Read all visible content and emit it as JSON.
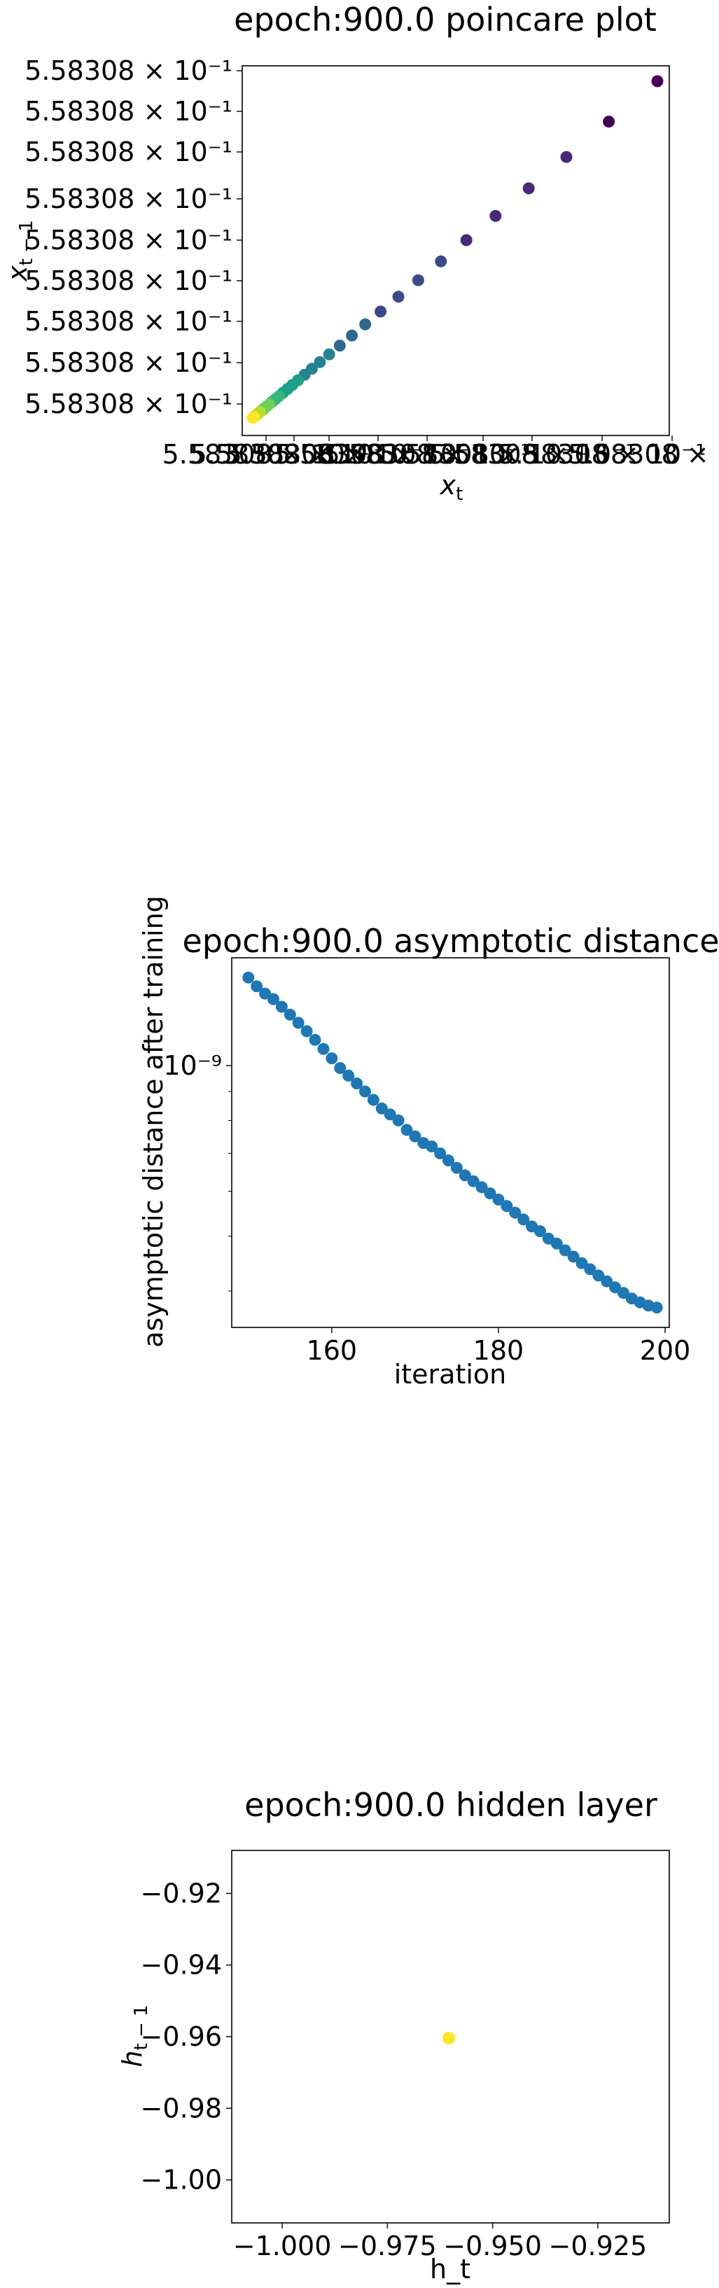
{
  "chart_data": [
    {
      "type": "scatter",
      "title": "epoch:900.0 poincare plot",
      "xlabel": "x_t",
      "ylabel": "x_{t-1}",
      "x_tick_labels": [
        "5.58308 × 10⁻¹",
        "5.58308 × 10⁻¹",
        "5.58308 × 10⁻¹",
        "5.58308 × 10⁻¹",
        "5.58308 × 10⁻¹",
        "5.58308 × 10⁻¹",
        "5.58308 × 10⁻¹",
        "5.58308 × 10⁻¹",
        "5.58308 × 10⁻¹"
      ],
      "y_tick_labels": [
        "5.58308 × 10⁻¹",
        "5.58308 × 10⁻¹",
        "5.58308 × 10⁻¹",
        "5.58308 × 10⁻¹",
        "5.58308 × 10⁻¹",
        "5.58308 × 10⁻¹",
        "5.58308 × 10⁻¹",
        "5.58308 × 10⁻¹",
        "5.58308 × 10⁻¹"
      ],
      "points_note": "values converge monotonically toward 5.58308e-1; colour shows time order (viridis, dark purple = earliest, yellow = latest)",
      "points": [
        {
          "x": 1.0,
          "y": 1.0
        },
        {
          "x": 0.88,
          "y": 0.88
        },
        {
          "x": 0.775,
          "y": 0.775
        },
        {
          "x": 0.682,
          "y": 0.682
        },
        {
          "x": 0.6,
          "y": 0.6
        },
        {
          "x": 0.528,
          "y": 0.528
        },
        {
          "x": 0.465,
          "y": 0.465
        },
        {
          "x": 0.409,
          "y": 0.409
        },
        {
          "x": 0.36,
          "y": 0.36
        },
        {
          "x": 0.316,
          "y": 0.316
        },
        {
          "x": 0.278,
          "y": 0.278
        },
        {
          "x": 0.245,
          "y": 0.245
        },
        {
          "x": 0.215,
          "y": 0.215
        },
        {
          "x": 0.189,
          "y": 0.189
        },
        {
          "x": 0.166,
          "y": 0.166
        },
        {
          "x": 0.146,
          "y": 0.146
        },
        {
          "x": 0.128,
          "y": 0.128
        },
        {
          "x": 0.112,
          "y": 0.112
        },
        {
          "x": 0.098,
          "y": 0.098
        },
        {
          "x": 0.086,
          "y": 0.086
        },
        {
          "x": 0.075,
          "y": 0.075
        },
        {
          "x": 0.065,
          "y": 0.065
        },
        {
          "x": 0.056,
          "y": 0.056
        },
        {
          "x": 0.048,
          "y": 0.048
        },
        {
          "x": 0.041,
          "y": 0.041
        },
        {
          "x": 0.034,
          "y": 0.034
        },
        {
          "x": 0.028,
          "y": 0.028
        },
        {
          "x": 0.023,
          "y": 0.023
        },
        {
          "x": 0.018,
          "y": 0.018
        },
        {
          "x": 0.014,
          "y": 0.014
        },
        {
          "x": 0.01,
          "y": 0.01
        },
        {
          "x": 0.006,
          "y": 0.006
        },
        {
          "x": 0.003,
          "y": 0.003
        },
        {
          "x": 0.0,
          "y": 0.0
        }
      ],
      "colormap": [
        "#440154",
        "#482878",
        "#3e4989",
        "#31688e",
        "#26828e",
        "#1f9e89",
        "#35b779",
        "#6ece58",
        "#b5de2b",
        "#fde725"
      ]
    },
    {
      "type": "scatter",
      "title": "epoch:900.0 asymptotic distance",
      "xlabel": "iteration",
      "ylabel": "asymptotic distance after training",
      "yscale": "log",
      "xlim": [
        148,
        200.5
      ],
      "x_ticks": [
        160,
        180,
        200
      ],
      "x_tick_labels": [
        "160",
        "180",
        "200"
      ],
      "y_ticks": [
        1e-09
      ],
      "y_tick_labels": [
        "10⁻⁹"
      ],
      "color": "#1f77b4",
      "x": [
        150,
        151,
        152,
        153,
        154,
        155,
        156,
        157,
        158,
        159,
        160,
        161,
        162,
        163,
        164,
        165,
        166,
        167,
        168,
        169,
        170,
        171,
        172,
        173,
        174,
        175,
        176,
        177,
        178,
        179,
        180,
        181,
        182,
        183,
        184,
        185,
        186,
        187,
        188,
        189,
        190,
        191,
        192,
        193,
        194,
        195,
        196,
        197,
        198,
        199
      ],
      "y": [
        1.43e-09,
        1.38e-09,
        1.34e-09,
        1.31e-09,
        1.27e-09,
        1.23e-09,
        1.19e-09,
        1.15e-09,
        1.11e-09,
        1.07e-09,
        1.03e-09,
        9.9e-10,
        9.6e-10,
        9.3e-10,
        9e-10,
        8.7e-10,
        8.4e-10,
        8.2e-10,
        8e-10,
        7.7e-10,
        7.5e-10,
        7.3e-10,
        7.2e-10,
        7e-10,
        6.8e-10,
        6.6e-10,
        6.4e-10,
        6.25e-10,
        6.1e-10,
        5.95e-10,
        5.8e-10,
        5.65e-10,
        5.5e-10,
        5.35e-10,
        5.2e-10,
        5.1e-10,
        4.95e-10,
        4.85e-10,
        4.72e-10,
        4.6e-10,
        4.48e-10,
        4.37e-10,
        4.26e-10,
        4.16e-10,
        4.06e-10,
        3.97e-10,
        3.88e-10,
        3.82e-10,
        3.77e-10,
        3.74e-10
      ]
    },
    {
      "type": "scatter",
      "title": "epoch:900.0 hidden layer",
      "xlabel": "h_t",
      "ylabel": "h_{t-1}",
      "xlim": [
        -1.012,
        -0.908
      ],
      "ylim": [
        -1.012,
        -0.908
      ],
      "x_ticks": [
        -1.0,
        -0.975,
        -0.95,
        -0.925
      ],
      "x_tick_labels": [
        "−1.000",
        "−0.975",
        "−0.950",
        "−0.925"
      ],
      "y_ticks": [
        -0.92,
        -0.94,
        -0.96,
        -0.98,
        -1.0
      ],
      "y_tick_labels": [
        "−0.92",
        "−0.94",
        "−0.96",
        "−0.98",
        "−1.00"
      ],
      "color": "#fde725",
      "points": [
        {
          "x": -0.9604,
          "y": -0.9604
        }
      ]
    }
  ]
}
